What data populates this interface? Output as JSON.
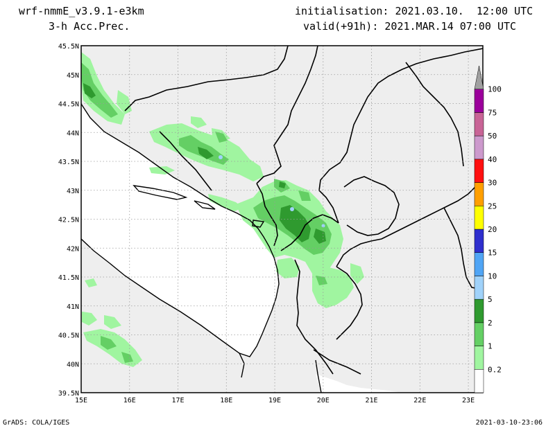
{
  "header": {
    "model": "wrf-nmmE_v3.9.1-e3km",
    "variable": "3-h Acc.Prec.",
    "init": "initialisation: 2021.03.10.  12:00 UTC",
    "valid": "valid(+91h): 2021.MAR.14 07:00 UTC"
  },
  "footer": {
    "left": "GrADS: COLA/IGES",
    "right": "2021-03-10-23:06"
  },
  "axes": {
    "lon_labels": [
      "15E",
      "16E",
      "17E",
      "18E",
      "19E",
      "20E",
      "21E",
      "22E",
      "23E"
    ],
    "lat_labels": [
      "39.5N",
      "40N",
      "40.5N",
      "41N",
      "41.5N",
      "42N",
      "42.5N",
      "43N",
      "43.5N",
      "44N",
      "44.5N",
      "45N",
      "45.5N"
    ]
  },
  "colorbar": {
    "labels": [
      "0.2",
      "1",
      "2",
      "5",
      "10",
      "15",
      "20",
      "25",
      "30",
      "40",
      "50",
      "75",
      "100"
    ],
    "colors": [
      "#ffffff",
      "#a0f5a0",
      "#64cf64",
      "#2f9a2f",
      "#a0d2fa",
      "#50a5f5",
      "#2f2fcd",
      "#ffff00",
      "#ff9f00",
      "#ff1010",
      "#cc99cc",
      "#c86496",
      "#9b009b",
      "#a0a0a0"
    ]
  },
  "colors": {
    "land": "#eeeeee",
    "sea": "#ffffff",
    "precip_light": "#a0f5a0",
    "precip_mid": "#64cf64",
    "precip_heavy": "#2f9a2f",
    "precip_peak": "#a0d2fa"
  }
}
